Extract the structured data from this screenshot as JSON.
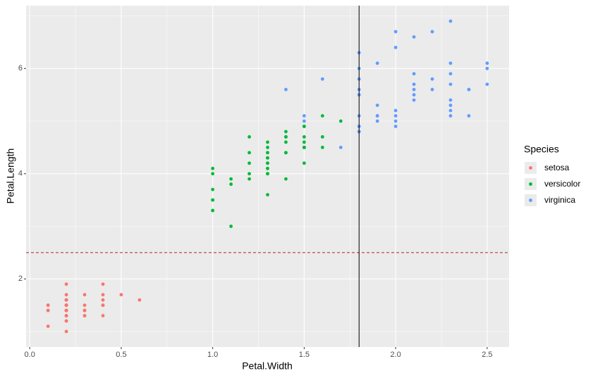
{
  "chart_data": {
    "type": "scatter",
    "xlabel": "Petal.Width",
    "ylabel": "Petal.Length",
    "xlim": [
      -0.02,
      2.62
    ],
    "ylim": [
      0.705,
      7.195
    ],
    "xticks": [
      {
        "value": 0,
        "label": "0.0"
      },
      {
        "value": 0.5,
        "label": "0.5"
      },
      {
        "value": 1,
        "label": "1.0"
      },
      {
        "value": 1.5,
        "label": "1.5"
      },
      {
        "value": 2,
        "label": "2.0"
      },
      {
        "value": 2.5,
        "label": "2.5"
      }
    ],
    "yticks": [
      2,
      4,
      6
    ],
    "grid": true,
    "legend": {
      "title": "Species",
      "position": "right"
    },
    "hline": {
      "y": 2.5,
      "color": "#b22222",
      "dashed": true
    },
    "vline": {
      "x": 1.8,
      "color": "#000000",
      "dashed": false
    },
    "series": [
      {
        "name": "setosa",
        "color": "#F8766D",
        "x": [
          0.2,
          0.2,
          0.2,
          0.2,
          0.2,
          0.4,
          0.3,
          0.2,
          0.2,
          0.1,
          0.2,
          0.2,
          0.1,
          0.1,
          0.2,
          0.4,
          0.4,
          0.3,
          0.3,
          0.3,
          0.2,
          0.4,
          0.2,
          0.5,
          0.2,
          0.2,
          0.4,
          0.2,
          0.2,
          0.2,
          0.2,
          0.4,
          0.1,
          0.2,
          0.2,
          0.2,
          0.2,
          0.1,
          0.2,
          0.2,
          0.3,
          0.3,
          0.2,
          0.6,
          0.4,
          0.3,
          0.2,
          0.2,
          0.2,
          0.2
        ],
        "values": [
          1.4,
          1.4,
          1.3,
          1.5,
          1.4,
          1.7,
          1.4,
          1.5,
          1.4,
          1.5,
          1.5,
          1.6,
          1.4,
          1.1,
          1.2,
          1.5,
          1.3,
          1.4,
          1.7,
          1.5,
          1.7,
          1.5,
          1.0,
          1.7,
          1.9,
          1.6,
          1.6,
          1.5,
          1.4,
          1.6,
          1.6,
          1.5,
          1.5,
          1.4,
          1.5,
          1.2,
          1.3,
          1.4,
          1.3,
          1.5,
          1.3,
          1.3,
          1.3,
          1.6,
          1.9,
          1.4,
          1.6,
          1.4,
          1.5,
          1.4
        ]
      },
      {
        "name": "versicolor",
        "color": "#00BA38",
        "x": [
          1.4,
          1.5,
          1.5,
          1.3,
          1.5,
          1.3,
          1.6,
          1.0,
          1.3,
          1.4,
          1.0,
          1.5,
          1.0,
          1.4,
          1.3,
          1.4,
          1.5,
          1.0,
          1.5,
          1.1,
          1.8,
          1.3,
          1.5,
          1.2,
          1.3,
          1.4,
          1.4,
          1.7,
          1.5,
          1.0,
          1.1,
          1.0,
          1.2,
          1.6,
          1.5,
          1.6,
          1.5,
          1.3,
          1.3,
          1.3,
          1.2,
          1.4,
          1.2,
          1.0,
          1.3,
          1.2,
          1.3,
          1.3,
          1.1,
          1.3
        ],
        "values": [
          4.7,
          4.5,
          4.9,
          4.0,
          4.6,
          4.5,
          4.7,
          3.3,
          4.6,
          3.9,
          3.5,
          4.2,
          4.0,
          4.7,
          3.6,
          4.4,
          4.5,
          4.1,
          4.5,
          3.9,
          4.8,
          4.0,
          4.9,
          4.7,
          4.3,
          4.4,
          4.8,
          5.0,
          4.5,
          3.5,
          3.8,
          3.7,
          3.9,
          5.1,
          4.5,
          4.5,
          4.7,
          4.4,
          4.1,
          4.0,
          4.4,
          4.6,
          4.0,
          3.3,
          4.2,
          4.2,
          4.2,
          4.3,
          3.0,
          4.1
        ]
      },
      {
        "name": "virginica",
        "color": "#619CFF",
        "x": [
          2.5,
          1.9,
          2.1,
          1.8,
          2.2,
          2.1,
          1.7,
          1.8,
          1.8,
          2.5,
          2.0,
          1.9,
          2.1,
          2.0,
          2.4,
          2.3,
          1.8,
          2.2,
          2.3,
          1.5,
          2.3,
          2.0,
          2.0,
          1.8,
          2.1,
          1.8,
          1.8,
          1.8,
          2.1,
          1.6,
          1.9,
          2.0,
          2.2,
          1.5,
          1.4,
          2.3,
          2.4,
          1.8,
          1.8,
          2.1,
          2.4,
          2.3,
          1.9,
          2.3,
          2.5,
          2.3,
          1.9,
          2.0,
          2.3,
          1.8
        ],
        "values": [
          6.0,
          5.1,
          5.9,
          5.6,
          5.8,
          6.6,
          4.5,
          6.3,
          5.8,
          6.1,
          5.1,
          5.3,
          5.5,
          5.0,
          5.1,
          5.3,
          5.5,
          6.7,
          6.9,
          5.0,
          5.7,
          4.9,
          6.7,
          4.9,
          5.7,
          6.0,
          4.8,
          4.9,
          5.6,
          5.8,
          6.1,
          6.4,
          5.6,
          5.1,
          5.6,
          6.1,
          5.6,
          5.5,
          4.8,
          5.4,
          5.6,
          5.1,
          5.1,
          5.9,
          5.7,
          5.2,
          5.0,
          5.2,
          5.4,
          5.1
        ]
      }
    ]
  }
}
